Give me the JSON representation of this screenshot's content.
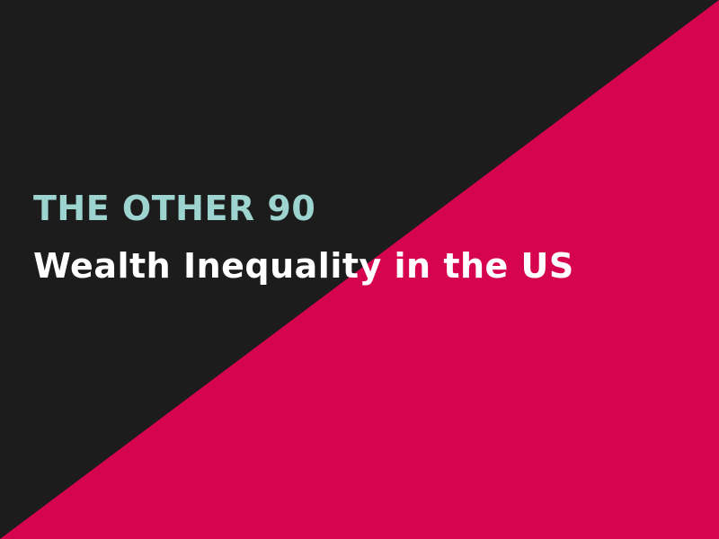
{
  "slide": {
    "kicker": "THE OTHER 90",
    "headline": "Wealth Inequality in the US"
  },
  "colors": {
    "background": "#1c1c1c",
    "accent": "#d6044f",
    "kicker_text": "#9dd4cf",
    "headline_text": "#ffffff"
  }
}
